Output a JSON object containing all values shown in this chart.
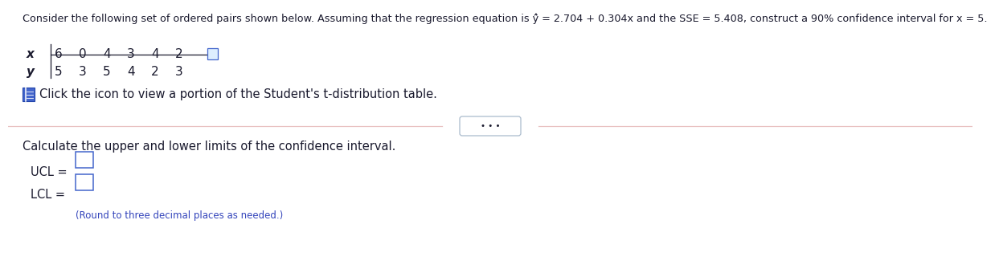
{
  "title_text": "Consider the following set of ordered pairs shown below. Assuming that the regression equation is ŷ̂ = 2.704 + 0.304x and the SSE = 5.408, construct a 90% confidence interval for x = 5.",
  "x_label": "x",
  "y_label": "y",
  "x_values": [
    "6",
    "0",
    "4",
    "3",
    "4",
    "2"
  ],
  "y_values": [
    "5",
    "3",
    "5",
    "4",
    "2",
    "3"
  ],
  "icon_text": "Click the icon to view a portion of the Student's t-distribution table.",
  "calculate_text": "Calculate the upper and lower limits of the confidence interval.",
  "ucl_label": "UCL =",
  "lcl_label": "LCL =",
  "round_note": "(Round to three decimal places as needed.)",
  "dots_button": "• • •",
  "bg_color": "#ffffff",
  "text_color": "#1a1a2e",
  "blue_color": "#3344bb",
  "icon_blue": "#4466cc",
  "divider_color": "#e8c0c0",
  "btn_border": "#aabbcc",
  "title_fontsize": 9.2,
  "body_fontsize": 10.5,
  "table_fontsize": 11.0
}
